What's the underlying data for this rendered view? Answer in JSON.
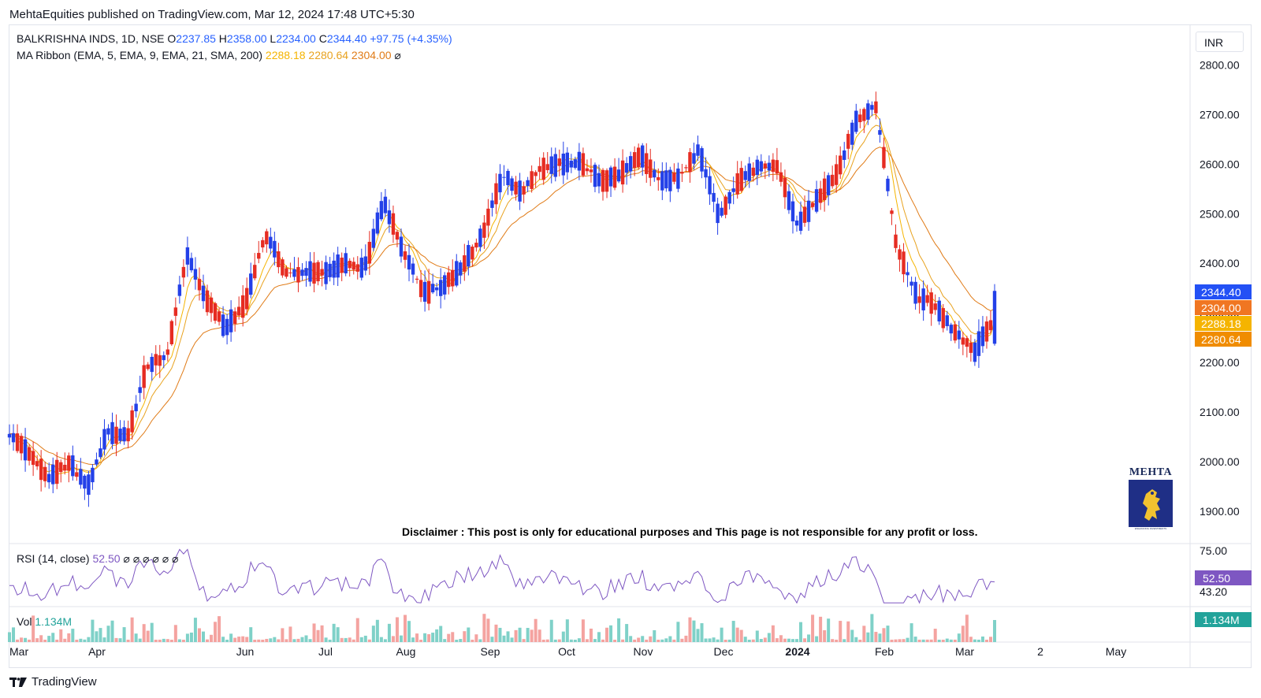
{
  "header": {
    "published_line": "MehtaEquities published on TradingView.com, Mar 12, 2024 17:48 UTC+5:30"
  },
  "symbol_legend": {
    "name": "BALKRISHNA INDS, 1D, NSE",
    "open_label": "O",
    "open": "2237.85",
    "high_label": "H",
    "high": "2358.00",
    "low_label": "L",
    "low": "2234.00",
    "close_label": "C",
    "close": "2344.40",
    "change": "+97.75 (+4.35%)"
  },
  "ma_legend": {
    "label": "MA Ribbon (EMA, 5, EMA, 9, EMA, 21, SMA, 200)",
    "v1": "2288.18",
    "v2": "2280.64",
    "v3": "2304.00",
    "hidden_icon": "⌀"
  },
  "rsi_legend": {
    "label": "RSI (14, close)",
    "value": "52.50",
    "hidden_icons": "⌀ ⌀ ⌀ ⌀ ⌀ ⌀"
  },
  "vol_legend": {
    "label": "Vol",
    "value": "1.134M"
  },
  "currency": "INR",
  "disclaimer": "Disclaimer : This post is only for educational purposes and This page is not responsible for any profit or loss.",
  "logo": {
    "text": "MEHTA",
    "tagline": "ENHANCING INVESTMENTS"
  },
  "footer": {
    "brand": "TradingView"
  },
  "colors": {
    "up": "#2340e8",
    "down": "#e62c22",
    "ema5": "#f5b400",
    "ema9": "#e8a21f",
    "ema21": "#e07b17",
    "rsi": "#7e57c2",
    "vol_up": "#7fd1c8",
    "vol_down": "#f4a3a0",
    "last_price": "#2962ff"
  },
  "chart_data": {
    "type": "candlestick",
    "price_axis": {
      "ticks": [
        "2800.00",
        "2700.00",
        "2600.00",
        "2500.00",
        "2400.00",
        "2300.00",
        "2200.00",
        "2100.00",
        "2000.00",
        "1900.00"
      ],
      "range": [
        1835,
        2880
      ]
    },
    "price_labels": [
      {
        "value": "2344.40",
        "price": 2344.4,
        "color": "#2351f5"
      },
      {
        "value": "2304.00",
        "price": 2304.0,
        "color": "#f07622"
      },
      {
        "value": "2288.18",
        "price": 2288.18,
        "color": "#f5b400"
      },
      {
        "value": "2280.64",
        "price": 2280.64,
        "color": "#f08c00"
      }
    ],
    "rsi_axis": {
      "ticks": [
        "75.00",
        "43.20"
      ],
      "last_value": "52.50",
      "last": 52.5
    },
    "volume_axis": {
      "last_value": "1.134M"
    },
    "time_axis": [
      "Mar",
      "Apr",
      "Jun",
      "Jul",
      "Aug",
      "Sep",
      "Oct",
      "Nov",
      "Dec",
      "2024",
      "Feb",
      "Mar",
      "2",
      "May"
    ],
    "time_axis_bold": "2024",
    "anchors": [
      [
        2065,
        2045
      ],
      [
        2020,
        2010
      ],
      [
        1960,
        1975
      ],
      [
        2005,
        1990
      ],
      [
        1940,
        1965
      ],
      [
        2010,
        2110
      ],
      [
        2040,
        2060
      ],
      [
        2150,
        2240
      ],
      [
        2235,
        2195
      ],
      [
        2350,
        2480
      ],
      [
        2360,
        2290
      ],
      [
        2300,
        2240
      ],
      [
        2310,
        2330
      ],
      [
        2420,
        2500
      ],
      [
        2385,
        2380
      ],
      [
        2400,
        2360
      ],
      [
        2320,
        2440
      ],
      [
        2385,
        2420
      ],
      [
        2395,
        2380
      ],
      [
        2555,
        2490
      ],
      [
        2495,
        2355
      ],
      [
        2360,
        2325
      ],
      [
        2355,
        2350
      ],
      [
        2400,
        2390
      ],
      [
        2420,
        2490
      ],
      [
        2560,
        2595
      ],
      [
        2570,
        2520
      ],
      [
        2555,
        2630
      ],
      [
        2615,
        2590
      ],
      [
        2620,
        2585
      ],
      [
        2560,
        2570
      ],
      [
        2590,
        2570
      ],
      [
        2640,
        2600
      ],
      [
        2570,
        2560
      ],
      [
        2575,
        2570
      ],
      [
        2600,
        2660
      ],
      [
        2490,
        2500
      ],
      [
        2545,
        2580
      ],
      [
        2570,
        2620
      ],
      [
        2600,
        2590
      ],
      [
        2520,
        2430
      ],
      [
        2500,
        2560
      ],
      [
        2535,
        2620
      ],
      [
        2680,
        2700
      ],
      [
        2760,
        2670
      ],
      [
        2460,
        2420
      ],
      [
        2320,
        2350
      ],
      [
        2330,
        2300
      ],
      [
        2280,
        2240
      ],
      [
        2210,
        2240
      ],
      [
        2237.85,
        2344.4
      ]
    ],
    "ema5_last": 2288.18,
    "ema9_last": 2280.64,
    "ema21_last": 2304.0
  }
}
